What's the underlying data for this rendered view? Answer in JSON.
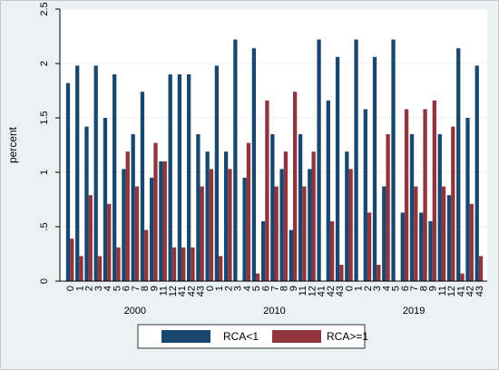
{
  "chart_data": {
    "type": "bar",
    "ylabel": "percent",
    "ylim": [
      0,
      2.5
    ],
    "yticks": [
      "0",
      ".5",
      "1",
      "1.5",
      "2",
      "2.5"
    ],
    "ytick_values": [
      0,
      0.5,
      1,
      1.5,
      2,
      2.5
    ],
    "colors": {
      "rca_lt1": "#1a476f",
      "rca_ge1": "#90353b",
      "grid": "#eaf2f3",
      "frame": "#000000"
    },
    "legend": {
      "position": "bottom-center",
      "entries": [
        "RCA<1",
        "RCA>=1"
      ]
    },
    "series_names": [
      "RCA<1",
      "RCA>=1"
    ],
    "groups": [
      {
        "label": "2000",
        "categories": [
          "0",
          "1",
          "2",
          "3",
          "4",
          "5",
          "6",
          "7",
          "8",
          "9",
          "11",
          "12",
          "41",
          "42",
          "43"
        ],
        "series": [
          {
            "name": "RCA<1",
            "values": [
              1.82,
              1.98,
              1.42,
              1.98,
              1.5,
              1.9,
              1.03,
              1.35,
              1.74,
              0.95,
              1.1,
              1.9,
              1.9,
              1.9,
              1.35
            ]
          },
          {
            "name": "RCA>=1",
            "values": [
              0.39,
              0.23,
              0.79,
              0.23,
              0.71,
              0.31,
              1.19,
              0.87,
              0.47,
              1.27,
              1.1,
              0.31,
              0.31,
              0.31,
              0.87
            ]
          }
        ]
      },
      {
        "label": "2010",
        "categories": [
          "0",
          "1",
          "2",
          "3",
          "4",
          "5",
          "6",
          "7",
          "8",
          "9",
          "11",
          "12",
          "41",
          "42",
          "43"
        ],
        "series": [
          {
            "name": "RCA<1",
            "values": [
              1.19,
              1.98,
              1.19,
              2.22,
              0.95,
              2.14,
              0.55,
              1.35,
              1.03,
              0.47,
              1.35,
              1.03,
              2.22,
              1.66,
              2.06
            ]
          },
          {
            "name": "RCA>=1",
            "values": [
              1.03,
              0.23,
              1.03,
              0,
              1.27,
              0.07,
              1.66,
              0.87,
              1.19,
              1.74,
              0.87,
              1.19,
              0,
              0.55,
              0.15
            ]
          }
        ]
      },
      {
        "label": "2019",
        "categories": [
          "0",
          "1",
          "2",
          "3",
          "4",
          "5",
          "6",
          "7",
          "8",
          "9",
          "11",
          "12",
          "41",
          "42",
          "43"
        ],
        "series": [
          {
            "name": "RCA<1",
            "values": [
              1.19,
              2.22,
              1.58,
              2.06,
              0.87,
              2.22,
              0.63,
              1.35,
              0.63,
              0.55,
              1.35,
              0.79,
              2.14,
              1.5,
              1.98
            ]
          },
          {
            "name": "RCA>=1",
            "values": [
              1.03,
              0,
              0.63,
              0.15,
              1.35,
              0,
              1.58,
              0.87,
              1.58,
              1.66,
              0.87,
              1.42,
              0.07,
              0.71,
              0.23
            ]
          }
        ]
      }
    ]
  }
}
